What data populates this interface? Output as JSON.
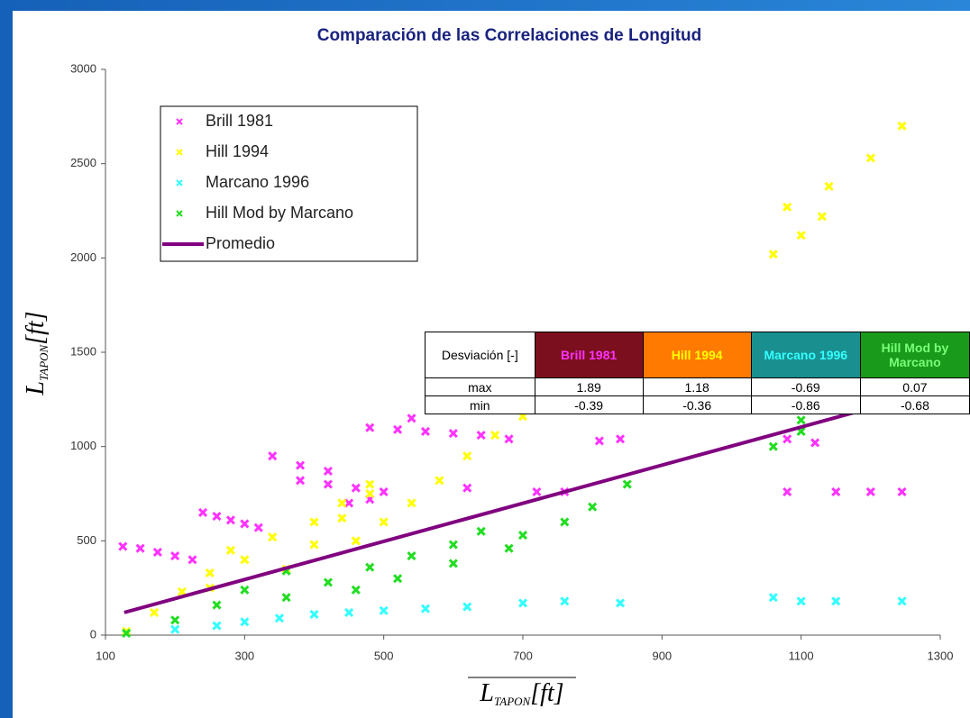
{
  "chart_data": {
    "type": "scatter",
    "title": "Comparación de las Correlaciones de Longitud",
    "x_label": "L",
    "x_label_sub": "TAPON",
    "x_label_unit": "[ft]",
    "y_label": "L",
    "y_label_sub": "TAPON",
    "y_label_unit": "[ft]",
    "xlim": [
      100,
      1300
    ],
    "xticks": [
      100,
      300,
      500,
      700,
      900,
      1100,
      1300
    ],
    "ylim": [
      0,
      3000
    ],
    "yticks": [
      0,
      500,
      1000,
      1500,
      2000,
      2500,
      3000
    ],
    "grid": false,
    "legend": "upper left",
    "series": [
      {
        "name": "Brill 1981",
        "color": "#ff33ff",
        "style": "marker",
        "x": [
          125,
          150,
          175,
          200,
          225,
          240,
          260,
          280,
          300,
          320,
          340,
          380,
          420,
          380,
          420,
          460,
          500,
          450,
          480,
          480,
          520,
          540,
          560,
          600,
          640,
          680,
          620,
          720,
          760,
          810,
          840,
          1080,
          1120,
          1080,
          1150,
          1200,
          1245
        ],
        "values": [
          470,
          460,
          440,
          420,
          400,
          650,
          630,
          610,
          590,
          570,
          950,
          900,
          870,
          820,
          800,
          780,
          760,
          700,
          720,
          1100,
          1090,
          1150,
          1080,
          1070,
          1060,
          1040,
          780,
          760,
          760,
          1030,
          1040,
          1040,
          1020,
          760,
          760,
          760,
          760
        ]
      },
      {
        "name": "Hill 1994",
        "color": "#ffff00",
        "style": "marker",
        "x": [
          130,
          170,
          210,
          250,
          280,
          250,
          300,
          340,
          360,
          400,
          440,
          480,
          400,
          440,
          480,
          460,
          500,
          540,
          580,
          620,
          660,
          700,
          740,
          770,
          1060,
          1100,
          1130,
          1080,
          1140,
          1200,
          1245
        ],
        "values": [
          20,
          120,
          230,
          330,
          450,
          250,
          400,
          520,
          350,
          480,
          620,
          750,
          600,
          700,
          800,
          500,
          600,
          700,
          820,
          950,
          1060,
          1160,
          1260,
          1380,
          2020,
          2120,
          2220,
          2270,
          2380,
          2530,
          2700
        ]
      },
      {
        "name": "Marcano 1996",
        "color": "#33ffff",
        "style": "marker",
        "x": [
          130,
          200,
          260,
          300,
          350,
          400,
          450,
          500,
          560,
          620,
          700,
          760,
          840,
          1060,
          1100,
          1150,
          1245
        ],
        "values": [
          10,
          30,
          50,
          70,
          90,
          110,
          120,
          130,
          140,
          150,
          170,
          180,
          170,
          200,
          180,
          180,
          180
        ]
      },
      {
        "name": "Hill Mod by Marcano",
        "color": "#22dd22",
        "style": "marker",
        "x": [
          130,
          200,
          260,
          300,
          360,
          420,
          480,
          540,
          600,
          460,
          520,
          600,
          680,
          700,
          760,
          800,
          850,
          1060,
          1100,
          1100,
          1160,
          1245,
          640,
          360
        ],
        "values": [
          10,
          80,
          160,
          240,
          200,
          280,
          360,
          420,
          480,
          240,
          300,
          380,
          460,
          530,
          600,
          680,
          800,
          1000,
          1080,
          1140,
          1220,
          1330,
          550,
          340
        ]
      },
      {
        "name": "Promedio",
        "color": "#800080",
        "style": "line",
        "x": [
          127,
          1245
        ],
        "values": [
          120,
          1250
        ]
      }
    ]
  },
  "table": {
    "header": [
      "Desviación [-]",
      "Brill 1981",
      "Hill 1994",
      "Marcano 1996",
      "Hill Mod by Marcano"
    ],
    "header_colors": [
      [
        "#ffffff",
        "#000000"
      ],
      [
        "#7b0f1e",
        "#ff33ff"
      ],
      [
        "#ff7a00",
        "#ffff00"
      ],
      [
        "#1a8f8f",
        "#33ffff"
      ],
      [
        "#1a9a1a",
        "#77ff77"
      ]
    ],
    "rows": [
      [
        "max",
        "1.89",
        "1.18",
        "-0.69",
        "0.07"
      ],
      [
        "min",
        "-0.39",
        "-0.36",
        "-0.86",
        "-0.68"
      ]
    ]
  }
}
